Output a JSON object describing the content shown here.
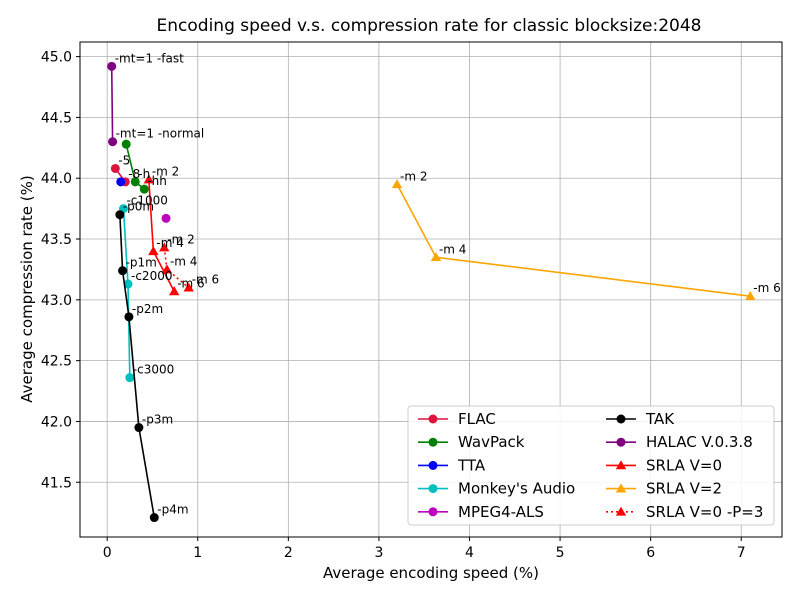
{
  "chart_data": {
    "type": "line",
    "title": "Encoding speed v.s. compression rate for classic blocksize:2048",
    "xlabel": "Average encoding speed (%)",
    "ylabel": "Average compression rate (%)",
    "xlim": [
      -0.3,
      7.45
    ],
    "ylim": [
      41.05,
      45.12
    ],
    "xticks": [
      "0",
      "1",
      "2",
      "3",
      "4",
      "5",
      "6",
      "7"
    ],
    "yticks": [
      "41.5",
      "42.0",
      "42.5",
      "43.0",
      "43.5",
      "44.0",
      "44.5",
      "45.0"
    ],
    "grid": true,
    "legend_position": "lower-right",
    "series": [
      {
        "name": "FLAC",
        "color": "#dc143c",
        "marker": "circle",
        "line": "solid",
        "points": [
          {
            "x": 0.09,
            "y": 44.08,
            "label": "-5"
          },
          {
            "x": 0.2,
            "y": 43.97,
            "label": "-8"
          }
        ]
      },
      {
        "name": "WavPack",
        "color": "#008000",
        "marker": "circle",
        "line": "solid",
        "points": [
          {
            "x": 0.21,
            "y": 44.28,
            "label": ""
          },
          {
            "x": 0.31,
            "y": 43.97,
            "label": "-h"
          },
          {
            "x": 0.41,
            "y": 43.91,
            "label": "-hh"
          }
        ]
      },
      {
        "name": "TTA",
        "color": "#0000ff",
        "marker": "circle",
        "line": "solid",
        "points": [
          {
            "x": 0.15,
            "y": 43.97,
            "label": ""
          }
        ]
      },
      {
        "name": "Monkey's Audio",
        "color": "#00bfbf",
        "marker": "circle",
        "line": "solid",
        "points": [
          {
            "x": 0.18,
            "y": 43.75,
            "label": "-c1000"
          },
          {
            "x": 0.23,
            "y": 43.13,
            "label": "-c2000"
          },
          {
            "x": 0.25,
            "y": 42.36,
            "label": "-c3000"
          }
        ]
      },
      {
        "name": "MPEG4-ALS",
        "color": "#bf00bf",
        "marker": "circle",
        "line": "solid",
        "points": [
          {
            "x": 0.65,
            "y": 43.67,
            "label": ""
          }
        ]
      },
      {
        "name": "TAK",
        "color": "#000000",
        "marker": "circle",
        "line": "solid",
        "points": [
          {
            "x": 0.14,
            "y": 43.7,
            "label": "-p0m"
          },
          {
            "x": 0.17,
            "y": 43.24,
            "label": "-p1m"
          },
          {
            "x": 0.24,
            "y": 42.86,
            "label": "-p2m"
          },
          {
            "x": 0.35,
            "y": 41.95,
            "label": "-p3m"
          },
          {
            "x": 0.52,
            "y": 41.21,
            "label": "-p4m"
          }
        ]
      },
      {
        "name": "HALAC V.0.3.8",
        "color": "#800080",
        "marker": "circle",
        "line": "solid",
        "points": [
          {
            "x": 0.05,
            "y": 44.92,
            "label": "-mt=1 -fast"
          },
          {
            "x": 0.06,
            "y": 44.3,
            "label": "-mt=1 -normal"
          }
        ]
      },
      {
        "name": "SRLA V=0",
        "color": "#ff0000",
        "marker": "triangle",
        "line": "solid",
        "points": [
          {
            "x": 0.46,
            "y": 43.99,
            "label": "-m 2"
          },
          {
            "x": 0.51,
            "y": 43.4,
            "label": "-m 4"
          },
          {
            "x": 0.74,
            "y": 43.07,
            "label": "-m 6"
          }
        ]
      },
      {
        "name": "SRLA V=2",
        "color": "#ffa500",
        "marker": "triangle",
        "line": "solid",
        "points": [
          {
            "x": 3.2,
            "y": 43.95,
            "label": "-m 2"
          },
          {
            "x": 3.63,
            "y": 43.35,
            "label": "-m 4"
          },
          {
            "x": 7.1,
            "y": 43.03,
            "label": "-m 6"
          }
        ]
      },
      {
        "name": "SRLA V=0 -P=3",
        "color": "#ff0000",
        "marker": "triangle",
        "line": "dotted",
        "points": [
          {
            "x": 0.63,
            "y": 43.43,
            "label": "-m 2"
          },
          {
            "x": 0.66,
            "y": 43.25,
            "label": "-m 4"
          },
          {
            "x": 0.9,
            "y": 43.1,
            "label": "-m 6"
          }
        ]
      }
    ]
  }
}
